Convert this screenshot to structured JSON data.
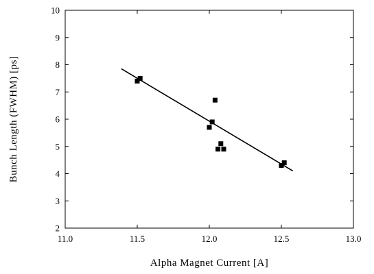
{
  "chart_data": {
    "type": "scatter",
    "title": "",
    "xlabel": "Alpha Magnet Current   [A]",
    "ylabel": "Bunch Length (FWHM)   [ps]",
    "xlim": [
      11.0,
      13.0
    ],
    "ylim": [
      2,
      10
    ],
    "xticks": [
      11.0,
      11.5,
      12.0,
      12.5,
      13.0
    ],
    "xtick_labels": [
      "11.0",
      "11.5",
      "12.0",
      "12.5",
      "13.0"
    ],
    "yticks": [
      2,
      3,
      4,
      5,
      6,
      7,
      8,
      9,
      10
    ],
    "ytick_labels": [
      "2",
      "3",
      "4",
      "5",
      "6",
      "7",
      "8",
      "9",
      "10"
    ],
    "grid": false,
    "series": [
      {
        "kind": "markers",
        "marker": "square",
        "color": "#000000",
        "points": [
          {
            "x": 11.5,
            "y": 7.4
          },
          {
            "x": 11.52,
            "y": 7.5
          },
          {
            "x": 12.0,
            "y": 5.7
          },
          {
            "x": 12.02,
            "y": 5.9
          },
          {
            "x": 12.04,
            "y": 6.7
          },
          {
            "x": 12.06,
            "y": 4.9
          },
          {
            "x": 12.08,
            "y": 5.1
          },
          {
            "x": 12.1,
            "y": 4.9
          },
          {
            "x": 12.5,
            "y": 4.3
          },
          {
            "x": 12.52,
            "y": 4.4
          }
        ]
      },
      {
        "kind": "fit-line",
        "color": "#000000",
        "points": [
          {
            "x": 11.39,
            "y": 7.85
          },
          {
            "x": 12.58,
            "y": 4.1
          }
        ]
      }
    ]
  }
}
